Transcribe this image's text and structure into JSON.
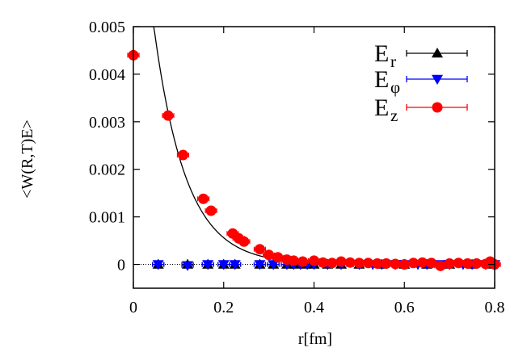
{
  "chart_data": {
    "type": "scatter",
    "title": "",
    "xlabel": "r[fm]",
    "ylabel": "<W(R,T)E>",
    "xlim": [
      0,
      0.8
    ],
    "ylim": [
      -0.0005,
      0.005
    ],
    "xticks": [
      "0",
      "0.2",
      "0.4",
      "0.6",
      "0.8"
    ],
    "yticks": [
      "0",
      "0.001",
      "0.002",
      "0.003",
      "0.004",
      "0.005"
    ],
    "legend_position": "top-right",
    "series": [
      {
        "name": "E_r",
        "legend_base": "E",
        "legend_sub": "r",
        "marker": "triangle-up",
        "color": "#000000",
        "x": [
          0.055,
          0.12,
          0.165,
          0.2,
          0.225,
          0.28,
          0.31,
          0.34,
          0.36,
          0.38,
          0.4,
          0.43,
          0.46,
          0.5,
          0.55,
          0.6,
          0.65,
          0.7,
          0.75,
          0.79
        ],
        "y": [
          0,
          0,
          0,
          0,
          0,
          0,
          0,
          0,
          0,
          0,
          0,
          0,
          0,
          0,
          0,
          0,
          0,
          0,
          0,
          0
        ]
      },
      {
        "name": "E_phi",
        "legend_base": "E",
        "legend_sub": "φ",
        "marker": "triangle-down",
        "color": "#0000ff",
        "x": [
          0.055,
          0.12,
          0.165,
          0.2,
          0.225,
          0.28,
          0.31,
          0.34,
          0.355,
          0.37,
          0.385,
          0.4,
          0.43,
          0.46,
          0.5,
          0.53,
          0.55,
          0.58,
          0.6,
          0.63,
          0.65,
          0.68,
          0.7,
          0.73,
          0.75,
          0.78,
          0.8
        ],
        "y": [
          0,
          -2e-05,
          0,
          0,
          0,
          0,
          0,
          0,
          0,
          0,
          0,
          0,
          0,
          0,
          0,
          0,
          0,
          0,
          0,
          0,
          0,
          0,
          0,
          0,
          0,
          0,
          0
        ]
      },
      {
        "name": "E_z",
        "legend_base": "E",
        "legend_sub": "z",
        "marker": "circle",
        "color": "#ff0000",
        "x": [
          0,
          0.077,
          0.11,
          0.155,
          0.172,
          0.22,
          0.233,
          0.245,
          0.28,
          0.3,
          0.32,
          0.34,
          0.355,
          0.375,
          0.4,
          0.42,
          0.44,
          0.46,
          0.48,
          0.5,
          0.52,
          0.54,
          0.56,
          0.58,
          0.6,
          0.62,
          0.64,
          0.66,
          0.68,
          0.7,
          0.72,
          0.74,
          0.76,
          0.78,
          0.79,
          0.8
        ],
        "y": [
          0.0044,
          0.00313,
          0.0023,
          0.00138,
          0.00113,
          0.00065,
          0.00055,
          0.00048,
          0.00032,
          0.0002,
          0.00015,
          0.0001,
          8e-05,
          6e-05,
          8e-05,
          4e-05,
          3e-05,
          6e-05,
          4e-05,
          3e-05,
          3e-05,
          2e-05,
          2e-05,
          1e-05,
          0.0,
          3e-05,
          4e-05,
          3e-05,
          -3e-05,
          2e-05,
          3e-05,
          2e-05,
          2e-05,
          1e-05,
          6e-05,
          0.0
        ],
        "err": 6e-05
      }
    ],
    "fit_curve": {
      "name": "E_z fit",
      "color": "#000000",
      "x_start": 0.045,
      "x_end": 0.8,
      "y_at_zero": 0.0095,
      "decay_fm": 0.0707
    },
    "zero_line": true
  }
}
